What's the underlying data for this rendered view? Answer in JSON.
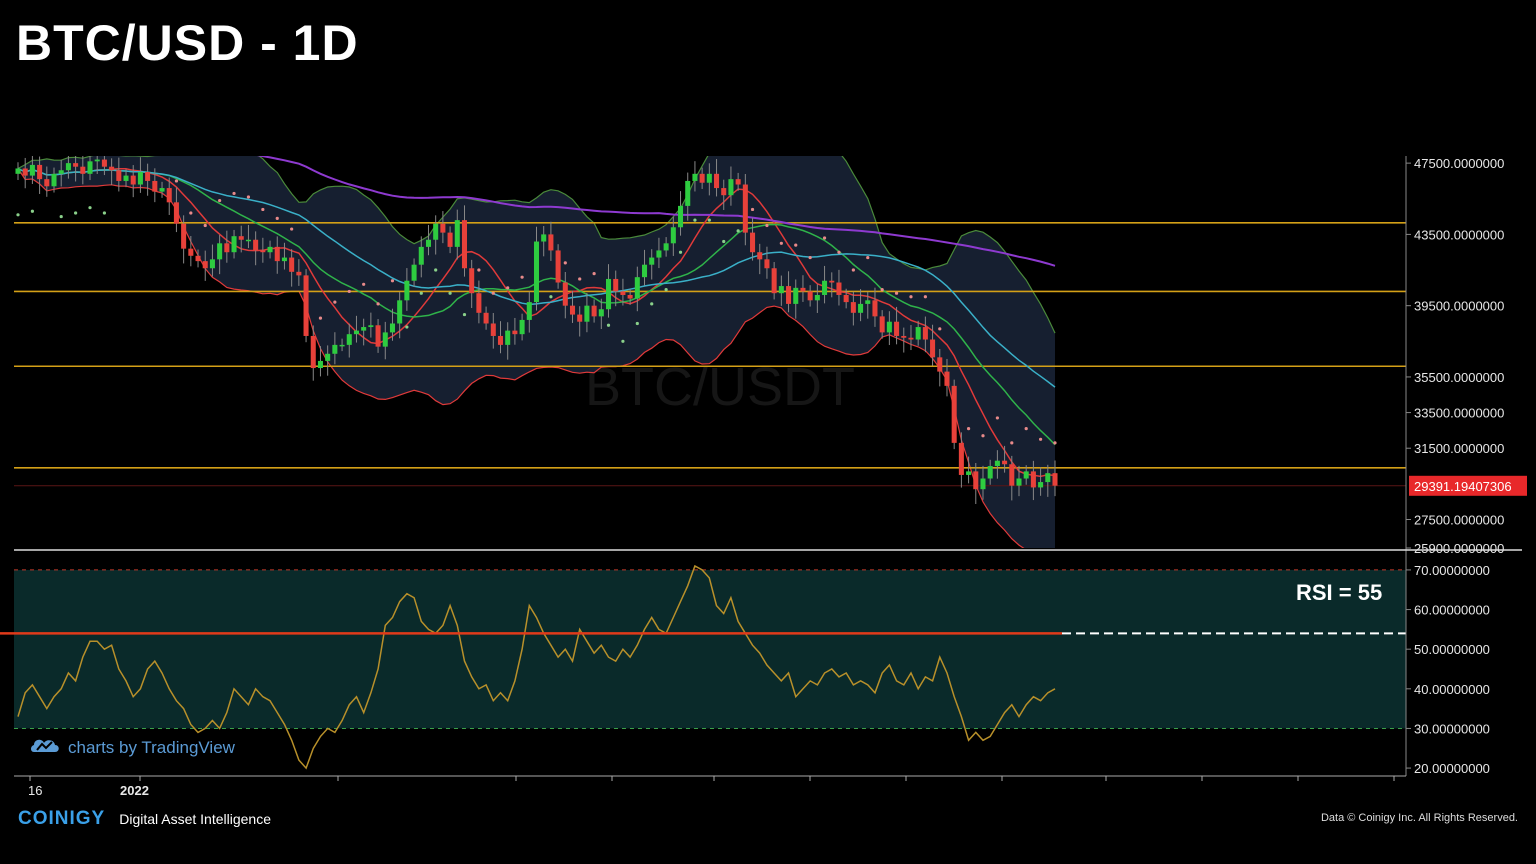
{
  "title": "BTC/USD - 1D",
  "watermark": {
    "symbol": "BTC/USDT"
  },
  "rsi_label": "RSI = 55",
  "tradingview_brand": "charts by TradingView",
  "coinigy": {
    "logo": "COINIGY",
    "tagline": "Digital Asset Intelligence"
  },
  "copyright": "Data © Coinigy Inc.  All Rights Reserved.",
  "colors": {
    "background": "#000000",
    "bull": "#2ecc40",
    "bear": "#e8413a",
    "horizontal_levels": "#d4a017",
    "bollinger_fill": "#1a2438",
    "bollinger_border": "#4a8a3a",
    "ma_fast": "#e03a3a",
    "ma_mid": "#3ab0c8",
    "ma_slow": "#8e3ad0",
    "rsi_line": "#b8902a",
    "rsi_zone": "#0a2a2a",
    "current_price_tag": "#e8282a"
  },
  "chart_data": [
    {
      "type": "candlestick",
      "title": "BTC/USD - 1D",
      "x_tick_labels": [
        "16",
        "2022"
      ],
      "y_tick_labels": [
        "47500.0000000",
        "43500.0000000",
        "39500.0000000",
        "35500.0000000",
        "33500.0000000",
        "31500.0000000",
        "27500.0000000",
        "25900.0000000"
      ],
      "y_ticks": [
        47500,
        43500,
        39500,
        35500,
        33500,
        31500,
        27500,
        25900
      ],
      "ylim": [
        25900,
        47900
      ],
      "current_price_label": "29391.19407306",
      "current_price": 29391.19,
      "horizontal_levels": [
        44150,
        40300,
        36100,
        30400
      ],
      "close": [
        47200,
        46800,
        47400,
        46600,
        46200,
        46900,
        47100,
        47500,
        47300,
        46900,
        47600,
        47700,
        47300,
        47100,
        46500,
        46800,
        46300,
        47000,
        46500,
        45900,
        46100,
        45300,
        44100,
        42700,
        42300,
        42000,
        41600,
        42100,
        43000,
        42500,
        43400,
        43200,
        43200,
        42600,
        42500,
        42800,
        42000,
        42200,
        41400,
        41200,
        37800,
        36000,
        36400,
        36800,
        37300,
        37300,
        37900,
        38100,
        38300,
        38400,
        37200,
        38000,
        38500,
        39800,
        40900,
        41800,
        42800,
        43200,
        44100,
        43600,
        42800,
        44300,
        41600,
        40200,
        39100,
        38500,
        37800,
        37300,
        38100,
        37900,
        38700,
        39700,
        43100,
        43500,
        42600,
        40800,
        39500,
        39000,
        38600,
        39500,
        38900,
        39300,
        41000,
        40300,
        40100,
        39900,
        41100,
        41800,
        42200,
        42600,
        43000,
        43900,
        45100,
        46500,
        46900,
        46400,
        46900,
        46100,
        45700,
        46600,
        46300,
        43600,
        42500,
        42100,
        41600,
        40200,
        40600,
        39600,
        40500,
        40300,
        39800,
        40100,
        40900,
        40800,
        40100,
        39700,
        39100,
        39600,
        39800,
        38900,
        38000,
        38600,
        37800,
        37700,
        37600,
        38300,
        37600,
        36600,
        35800,
        35000,
        31800,
        30000,
        30200,
        29200,
        29800,
        30500,
        30800,
        30600,
        29400,
        29800,
        30200,
        29300,
        29600,
        30100,
        29400
      ],
      "rsi": {
        "ylim": [
          18,
          72
        ],
        "y_tick_labels": [
          "70.00000000",
          "60.00000000",
          "50.00000000",
          "40.00000000",
          "30.00000000",
          "20.00000000"
        ],
        "y_ticks": [
          70,
          60,
          50,
          40,
          30,
          20
        ],
        "overbought": 70,
        "oversold": 30,
        "reference_level": 54,
        "values": [
          33,
          39,
          41,
          38,
          35,
          38,
          40,
          44,
          42,
          48,
          52,
          52,
          50,
          51,
          45,
          42,
          38,
          40,
          45,
          47,
          44,
          40,
          37,
          35,
          31,
          29,
          30,
          32,
          30,
          34,
          40,
          38,
          36,
          40,
          38,
          37,
          34,
          31,
          27,
          22,
          20,
          25,
          28,
          30,
          29,
          32,
          36,
          38,
          34,
          39,
          45,
          56,
          58,
          62,
          64,
          63,
          57,
          55,
          54,
          56,
          61,
          56,
          47,
          43,
          40,
          41,
          37,
          39,
          37,
          42,
          50,
          61,
          58,
          54,
          51,
          48,
          50,
          47,
          55,
          52,
          49,
          51,
          48,
          47,
          50,
          48,
          51,
          55,
          58,
          55,
          54,
          58,
          62,
          66,
          71,
          70,
          68,
          61,
          59,
          63,
          57,
          54,
          51,
          49,
          46,
          44,
          42,
          44,
          38,
          40,
          42,
          41,
          44,
          45,
          43,
          44,
          41,
          42,
          41,
          39,
          44,
          46,
          42,
          41,
          44,
          40,
          43,
          42,
          48,
          44,
          38,
          33,
          27,
          29,
          27,
          28,
          31,
          34,
          36,
          33,
          36,
          38,
          37,
          39,
          40
        ]
      }
    }
  ]
}
